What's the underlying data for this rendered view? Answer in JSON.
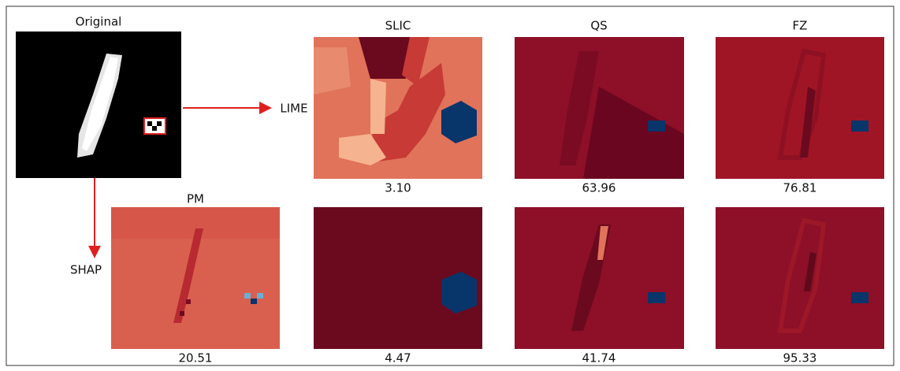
{
  "original": {
    "label": "Original"
  },
  "methods": {
    "lime": "LIME",
    "shap": "SHAP"
  },
  "columns": {
    "pm": "PM",
    "slic": "SLIC",
    "qs": "QS",
    "fz": "FZ"
  },
  "scores": {
    "lime": {
      "slic": "3.10",
      "qs": "63.96",
      "fz": "76.81"
    },
    "shap": {
      "pm": "20.51",
      "slic": "4.47",
      "qs": "41.74",
      "fz": "95.33"
    }
  }
}
